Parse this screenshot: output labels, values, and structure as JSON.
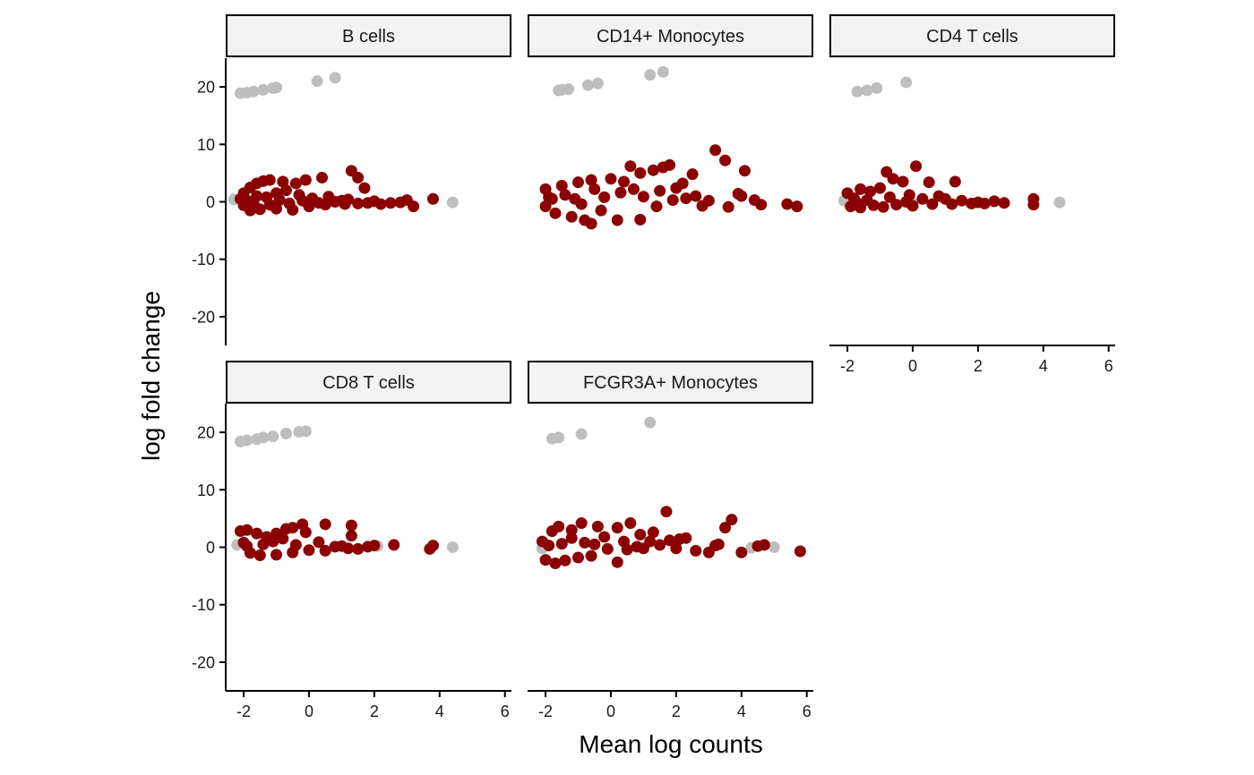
{
  "chart_data": {
    "type": "scatter",
    "title": "",
    "xlabel": "Mean log counts",
    "ylabel": "log fold change",
    "xlim": [
      -2.55,
      6.2
    ],
    "ylim": [
      -25,
      25
    ],
    "x_ticks": [
      -2,
      0,
      2,
      4,
      6
    ],
    "y_ticks": [
      -20,
      -10,
      0,
      10,
      20
    ],
    "x_tick_labels": [
      "-2",
      "0",
      "2",
      "4",
      "6"
    ],
    "y_tick_labels": [
      "-20",
      "-10",
      "0",
      "10",
      "20"
    ],
    "grid": false,
    "legend": "none",
    "colors": {
      "significant": "#8b0000",
      "not_significant": "#bebebe"
    },
    "facets": [
      {
        "name": "B cells",
        "grey_points": [
          [
            -2.1,
            18.9
          ],
          [
            -1.9,
            19.0
          ],
          [
            -1.7,
            19.2
          ],
          [
            -1.4,
            19.5
          ],
          [
            -1.1,
            19.8
          ],
          [
            -1.0,
            19.9
          ],
          [
            0.25,
            21.0
          ],
          [
            0.8,
            21.6
          ],
          [
            4.4,
            -0.1
          ],
          [
            -2.3,
            0.4
          ]
        ],
        "red_points": [
          [
            -2.0,
            1.5
          ],
          [
            -1.8,
            2.5
          ],
          [
            -1.6,
            3.2
          ],
          [
            -1.4,
            3.6
          ],
          [
            -1.2,
            3.8
          ],
          [
            -0.8,
            3.5
          ],
          [
            -0.4,
            3.2
          ],
          [
            -0.1,
            3.8
          ],
          [
            0.4,
            4.2
          ],
          [
            1.3,
            5.4
          ],
          [
            1.5,
            4.2
          ],
          [
            1.7,
            2.4
          ],
          [
            -2.1,
            0.5
          ],
          [
            -1.8,
            -1.5
          ],
          [
            -1.5,
            -1.3
          ],
          [
            -1.0,
            -1.2
          ],
          [
            -0.5,
            -1.4
          ],
          [
            0.0,
            -0.8
          ],
          [
            0.5,
            -0.5
          ],
          [
            1.0,
            0.2
          ],
          [
            1.5,
            -0.3
          ],
          [
            2.0,
            0.1
          ],
          [
            2.5,
            -0.2
          ],
          [
            3.0,
            0.3
          ],
          [
            3.2,
            -0.8
          ],
          [
            3.8,
            0.5
          ],
          [
            -1.9,
            0.2
          ],
          [
            -1.6,
            1.0
          ],
          [
            -1.3,
            0.8
          ],
          [
            -1.0,
            1.5
          ],
          [
            -0.7,
            2.0
          ],
          [
            -0.3,
            1.2
          ],
          [
            0.1,
            0.6
          ],
          [
            0.6,
            0.9
          ],
          [
            1.1,
            -0.4
          ],
          [
            -2.0,
            -0.6
          ],
          [
            -1.7,
            -0.2
          ],
          [
            -1.2,
            -0.5
          ],
          [
            -0.9,
            0.3
          ],
          [
            -0.6,
            -0.3
          ],
          [
            -0.2,
            0.2
          ],
          [
            0.3,
            -0.2
          ],
          [
            0.8,
            0.0
          ],
          [
            1.2,
            0.4
          ],
          [
            1.8,
            -0.2
          ],
          [
            2.2,
            -0.4
          ],
          [
            2.8,
            -0.1
          ]
        ]
      },
      {
        "name": "CD14+ Monocytes",
        "grey_points": [
          [
            -1.6,
            19.4
          ],
          [
            -1.5,
            19.5
          ],
          [
            -1.3,
            19.6
          ],
          [
            -0.7,
            20.3
          ],
          [
            -0.4,
            20.6
          ],
          [
            1.2,
            22.1
          ],
          [
            1.6,
            22.6
          ]
        ],
        "red_points": [
          [
            -2.0,
            2.2
          ],
          [
            -1.8,
            0.5
          ],
          [
            -1.5,
            2.8
          ],
          [
            -1.0,
            3.4
          ],
          [
            -0.6,
            3.8
          ],
          [
            -0.5,
            2.2
          ],
          [
            0.0,
            4.0
          ],
          [
            0.4,
            3.5
          ],
          [
            0.6,
            6.2
          ],
          [
            0.9,
            5.0
          ],
          [
            1.3,
            5.5
          ],
          [
            1.6,
            6.0
          ],
          [
            1.8,
            6.4
          ],
          [
            2.2,
            3.2
          ],
          [
            2.5,
            4.8
          ],
          [
            2.8,
            -0.7
          ],
          [
            3.2,
            9.0
          ],
          [
            3.5,
            7.2
          ],
          [
            4.0,
            1.0
          ],
          [
            4.1,
            5.4
          ],
          [
            4.4,
            0.3
          ],
          [
            4.6,
            -0.5
          ],
          [
            5.4,
            -0.4
          ],
          [
            5.7,
            -0.8
          ],
          [
            -2.0,
            -0.8
          ],
          [
            -1.7,
            -2.0
          ],
          [
            -1.2,
            -2.6
          ],
          [
            -0.8,
            -3.2
          ],
          [
            -0.6,
            -3.8
          ],
          [
            -0.3,
            -1.5
          ],
          [
            0.2,
            -3.2
          ],
          [
            0.9,
            -3.1
          ],
          [
            1.4,
            -0.8
          ],
          [
            1.9,
            0.3
          ],
          [
            2.3,
            0.6
          ],
          [
            3.0,
            0.2
          ],
          [
            3.6,
            -0.9
          ],
          [
            3.9,
            1.4
          ],
          [
            -1.9,
            0.8
          ],
          [
            -1.4,
            1.2
          ],
          [
            -1.1,
            0.5
          ],
          [
            -0.9,
            -0.4
          ],
          [
            -0.2,
            0.8
          ],
          [
            0.3,
            1.6
          ],
          [
            0.7,
            2.2
          ],
          [
            1.0,
            0.9
          ],
          [
            1.5,
            1.9
          ],
          [
            2.0,
            2.4
          ],
          [
            2.6,
            1.0
          ]
        ]
      },
      {
        "name": "CD4 T cells",
        "grey_points": [
          [
            -1.7,
            19.2
          ],
          [
            -1.4,
            19.4
          ],
          [
            -1.1,
            19.8
          ],
          [
            -0.2,
            20.8
          ],
          [
            4.5,
            -0.1
          ],
          [
            -2.1,
            0.2
          ],
          [
            0.0,
            -0.3
          ]
        ],
        "red_points": [
          [
            -2.0,
            1.5
          ],
          [
            -1.8,
            0.6
          ],
          [
            -1.6,
            2.2
          ],
          [
            -1.3,
            1.8
          ],
          [
            -1.0,
            2.4
          ],
          [
            -0.8,
            5.2
          ],
          [
            -0.6,
            4.0
          ],
          [
            -0.3,
            3.5
          ],
          [
            0.1,
            6.2
          ],
          [
            0.5,
            3.4
          ],
          [
            1.3,
            3.5
          ],
          [
            -0.1,
            1.2
          ],
          [
            0.3,
            0.5
          ],
          [
            0.8,
            1.0
          ],
          [
            1.0,
            0.5
          ],
          [
            1.5,
            0.2
          ],
          [
            2.0,
            -0.1
          ],
          [
            2.5,
            0.1
          ],
          [
            2.8,
            -0.2
          ],
          [
            3.7,
            0.5
          ],
          [
            3.7,
            -0.5
          ],
          [
            -1.9,
            -0.8
          ],
          [
            -1.6,
            -1.0
          ],
          [
            -1.2,
            -0.6
          ],
          [
            -0.9,
            -0.9
          ],
          [
            -0.5,
            -0.5
          ],
          [
            0.0,
            -0.7
          ],
          [
            0.6,
            -0.4
          ],
          [
            1.2,
            -0.4
          ],
          [
            1.8,
            -0.3
          ],
          [
            2.2,
            -0.3
          ],
          [
            -1.7,
            -0.2
          ],
          [
            -1.4,
            0.3
          ],
          [
            -0.7,
            0.8
          ],
          [
            -0.2,
            0.0
          ]
        ]
      },
      {
        "name": "CD8 T cells",
        "grey_points": [
          [
            -2.1,
            18.4
          ],
          [
            -1.9,
            18.6
          ],
          [
            -1.6,
            18.8
          ],
          [
            -1.4,
            19.1
          ],
          [
            -1.1,
            19.3
          ],
          [
            -0.7,
            19.8
          ],
          [
            -0.3,
            20.1
          ],
          [
            -0.1,
            20.2
          ],
          [
            4.4,
            0.0
          ],
          [
            -2.2,
            0.4
          ],
          [
            2.1,
            0.2
          ]
        ],
        "red_points": [
          [
            -2.1,
            2.8
          ],
          [
            -1.9,
            3.0
          ],
          [
            -1.6,
            2.4
          ],
          [
            -1.3,
            1.8
          ],
          [
            -1.0,
            2.4
          ],
          [
            -0.7,
            3.2
          ],
          [
            -0.5,
            3.4
          ],
          [
            -0.2,
            4.0
          ],
          [
            -0.1,
            2.6
          ],
          [
            0.5,
            4.0
          ],
          [
            1.3,
            3.8
          ],
          [
            1.3,
            2.0
          ],
          [
            -2.0,
            0.8
          ],
          [
            -1.8,
            -1.0
          ],
          [
            -1.5,
            -1.4
          ],
          [
            -1.0,
            -1.3
          ],
          [
            -0.5,
            -0.9
          ],
          [
            0.0,
            -0.5
          ],
          [
            0.5,
            -0.6
          ],
          [
            1.0,
            0.2
          ],
          [
            1.5,
            -0.3
          ],
          [
            2.0,
            0.3
          ],
          [
            2.6,
            0.4
          ],
          [
            3.7,
            -0.3
          ],
          [
            3.8,
            0.3
          ],
          [
            -1.9,
            0.2
          ],
          [
            -1.4,
            0.5
          ],
          [
            -1.1,
            1.0
          ],
          [
            -0.8,
            1.5
          ],
          [
            -0.4,
            0.4
          ],
          [
            0.3,
            0.9
          ],
          [
            0.8,
            0.1
          ],
          [
            1.2,
            -0.2
          ],
          [
            1.8,
            0.1
          ]
        ]
      },
      {
        "name": "FCGR3A+ Monocytes",
        "grey_points": [
          [
            -1.8,
            18.9
          ],
          [
            -1.6,
            19.1
          ],
          [
            -0.9,
            19.7
          ],
          [
            1.2,
            21.7
          ],
          [
            5.0,
            0.0
          ],
          [
            -2.1,
            -0.2
          ],
          [
            4.3,
            -0.1
          ]
        ],
        "red_points": [
          [
            -2.1,
            1.0
          ],
          [
            -1.8,
            2.8
          ],
          [
            -1.6,
            3.6
          ],
          [
            -1.2,
            3.0
          ],
          [
            -0.9,
            4.2
          ],
          [
            -0.4,
            3.6
          ],
          [
            -0.2,
            1.8
          ],
          [
            0.2,
            3.4
          ],
          [
            0.6,
            4.2
          ],
          [
            0.9,
            2.2
          ],
          [
            1.2,
            1.0
          ],
          [
            1.7,
            6.2
          ],
          [
            1.8,
            1.2
          ],
          [
            2.3,
            1.6
          ],
          [
            3.2,
            0.3
          ],
          [
            3.5,
            3.4
          ],
          [
            3.7,
            4.8
          ],
          [
            -2.0,
            -2.2
          ],
          [
            -1.7,
            -2.8
          ],
          [
            -1.4,
            -2.3
          ],
          [
            -1.0,
            -1.8
          ],
          [
            -0.6,
            -1.5
          ],
          [
            0.2,
            -2.6
          ],
          [
            0.5,
            -0.4
          ],
          [
            1.0,
            -0.2
          ],
          [
            1.5,
            0.4
          ],
          [
            2.0,
            -0.2
          ],
          [
            2.6,
            -0.6
          ],
          [
            3.0,
            -0.9
          ],
          [
            3.3,
            0.5
          ],
          [
            4.0,
            -0.9
          ],
          [
            4.5,
            0.2
          ],
          [
            4.7,
            0.4
          ],
          [
            5.8,
            -0.7
          ],
          [
            -1.9,
            0.3
          ],
          [
            -1.5,
            0.6
          ],
          [
            -1.2,
            1.6
          ],
          [
            -0.8,
            0.8
          ],
          [
            -0.5,
            0.5
          ],
          [
            -0.1,
            -0.3
          ],
          [
            0.4,
            1.0
          ],
          [
            0.8,
            0.1
          ],
          [
            1.3,
            2.6
          ],
          [
            2.1,
            1.4
          ]
        ]
      }
    ]
  }
}
